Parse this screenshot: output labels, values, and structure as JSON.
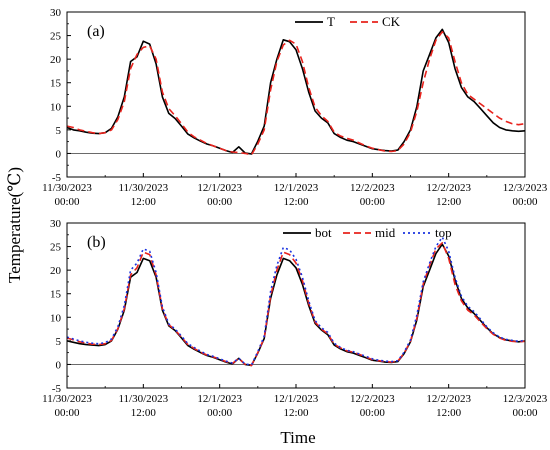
{
  "figure": {
    "ylabel": "Temperature(℃)",
    "xlabel": "Time"
  },
  "chart_data": [
    {
      "type": "line",
      "panel_label": "(a)",
      "ylim": [
        -5,
        30
      ],
      "yticks": [
        -5,
        0,
        5,
        10,
        15,
        20,
        25,
        30
      ],
      "xlim": [
        0,
        72
      ],
      "xticks": [
        0,
        12,
        24,
        36,
        48,
        60,
        72
      ],
      "xtick_labels": [
        [
          "11/30/2023",
          "00:00"
        ],
        [
          "11/30/2023",
          "12:00"
        ],
        [
          "12/1/2023",
          "00:00"
        ],
        [
          "12/1/2023",
          "12:00"
        ],
        [
          "12/2/2023",
          "00:00"
        ],
        [
          "12/2/2023",
          "12:00"
        ],
        [
          "12/3/2023",
          "00:00"
        ]
      ],
      "grid": false,
      "zero_line": true,
      "legend": "top-right",
      "x": [
        0,
        1,
        2,
        3,
        4,
        5,
        6,
        7,
        8,
        9,
        10,
        11,
        12,
        13,
        14,
        15,
        16,
        17,
        18,
        19,
        20,
        21,
        22,
        23,
        24,
        25,
        26,
        27,
        28,
        29,
        30,
        31,
        32,
        33,
        34,
        35,
        36,
        37,
        38,
        39,
        40,
        41,
        42,
        43,
        44,
        45,
        46,
        47,
        48,
        49,
        50,
        51,
        52,
        53,
        54,
        55,
        56,
        57,
        58,
        59,
        60,
        61,
        62,
        63,
        64,
        65,
        66,
        67,
        68,
        69,
        70,
        71,
        72
      ],
      "series": [
        {
          "name": "T",
          "color": "#000000",
          "dash": "solid",
          "values": [
            5.5,
            5.0,
            4.8,
            4.5,
            4.3,
            4.2,
            4.4,
            5.3,
            7.8,
            12.0,
            19.5,
            20.5,
            23.8,
            23.2,
            19.0,
            12.0,
            8.5,
            7.4,
            5.8,
            4.1,
            3.3,
            2.6,
            2.0,
            1.6,
            1.1,
            0.6,
            0.2,
            1.4,
            0.1,
            -0.1,
            2.6,
            5.8,
            15.0,
            20.0,
            24.1,
            23.7,
            22.0,
            18.0,
            13.0,
            9.0,
            7.5,
            6.5,
            4.2,
            3.4,
            2.8,
            2.5,
            2.0,
            1.5,
            1.0,
            0.8,
            0.6,
            0.5,
            0.7,
            2.5,
            5.0,
            10.0,
            17.5,
            21.0,
            24.5,
            26.3,
            23.5,
            18.0,
            14.0,
            12.0,
            11.0,
            9.5,
            8.0,
            6.5,
            5.5,
            5.0,
            4.8,
            4.7,
            4.8
          ]
        },
        {
          "name": "CK",
          "color": "#e8231d",
          "dash": "dashed",
          "values": [
            5.8,
            5.5,
            5.0,
            4.7,
            4.4,
            4.2,
            4.4,
            5.0,
            7.2,
            11.0,
            18.0,
            21.0,
            22.5,
            22.8,
            20.0,
            13.0,
            9.5,
            8.0,
            6.3,
            4.5,
            3.5,
            2.8,
            2.1,
            1.6,
            1.1,
            0.6,
            0.3,
            0.2,
            0.0,
            -0.3,
            2.0,
            5.0,
            13.5,
            19.5,
            23.0,
            24.0,
            23.2,
            19.5,
            14.0,
            9.8,
            8.0,
            6.8,
            4.5,
            3.7,
            3.2,
            2.8,
            2.2,
            1.6,
            1.1,
            0.8,
            0.5,
            0.4,
            0.6,
            2.0,
            4.5,
            9.0,
            15.0,
            20.0,
            24.0,
            25.8,
            24.5,
            19.5,
            15.0,
            12.5,
            11.5,
            10.5,
            9.5,
            8.5,
            7.5,
            6.8,
            6.3,
            6.1,
            6.3
          ]
        }
      ]
    },
    {
      "type": "line",
      "panel_label": "(b)",
      "ylim": [
        -5,
        30
      ],
      "yticks": [
        -5,
        0,
        5,
        10,
        15,
        20,
        25,
        30
      ],
      "xlim": [
        0,
        72
      ],
      "xticks": [
        0,
        12,
        24,
        36,
        48,
        60,
        72
      ],
      "xtick_labels": [
        [
          "11/30/2023",
          "00:00"
        ],
        [
          "11/30/2023",
          "12:00"
        ],
        [
          "12/1/2023",
          "00:00"
        ],
        [
          "12/1/2023",
          "12:00"
        ],
        [
          "12/2/2023",
          "00:00"
        ],
        [
          "12/2/2023",
          "12:00"
        ],
        [
          "12/3/2023",
          "00:00"
        ]
      ],
      "grid": false,
      "zero_line": true,
      "legend": "top-right",
      "x": [
        0,
        1,
        2,
        3,
        4,
        5,
        6,
        7,
        8,
        9,
        10,
        11,
        12,
        13,
        14,
        15,
        16,
        17,
        18,
        19,
        20,
        21,
        22,
        23,
        24,
        25,
        26,
        27,
        28,
        29,
        30,
        31,
        32,
        33,
        34,
        35,
        36,
        37,
        38,
        39,
        40,
        41,
        42,
        43,
        44,
        45,
        46,
        47,
        48,
        49,
        50,
        51,
        52,
        53,
        54,
        55,
        56,
        57,
        58,
        59,
        60,
        61,
        62,
        63,
        64,
        65,
        66,
        67,
        68,
        69,
        70,
        71,
        72
      ],
      "series": [
        {
          "name": "bot",
          "color": "#000000",
          "dash": "solid",
          "values": [
            5.0,
            4.7,
            4.4,
            4.2,
            4.1,
            4.0,
            4.2,
            5.0,
            7.5,
            11.5,
            18.5,
            19.5,
            22.5,
            22.0,
            18.5,
            11.5,
            8.2,
            7.2,
            5.6,
            4.0,
            3.2,
            2.5,
            1.9,
            1.5,
            1.0,
            0.5,
            0.1,
            1.3,
            0.0,
            -0.2,
            2.4,
            5.5,
            14.0,
            19.0,
            22.5,
            22.0,
            20.5,
            17.0,
            12.5,
            8.7,
            7.3,
            6.3,
            4.1,
            3.3,
            2.7,
            2.4,
            1.9,
            1.4,
            0.9,
            0.7,
            0.5,
            0.4,
            0.6,
            2.3,
            4.8,
            9.5,
            16.5,
            20.0,
            23.5,
            25.5,
            23.0,
            18.0,
            14.0,
            12.0,
            10.8,
            9.3,
            7.8,
            6.5,
            5.7,
            5.2,
            5.0,
            4.8,
            5.0
          ]
        },
        {
          "name": "mid",
          "color": "#e8231d",
          "dash": "dashed",
          "values": [
            5.6,
            5.2,
            4.8,
            4.5,
            4.3,
            4.2,
            4.4,
            5.1,
            7.6,
            11.8,
            19.0,
            20.5,
            23.8,
            23.3,
            19.0,
            11.8,
            8.4,
            7.3,
            5.8,
            4.2,
            3.4,
            2.6,
            2.0,
            1.6,
            1.1,
            0.6,
            0.2,
            1.3,
            0.0,
            -0.2,
            2.5,
            5.6,
            14.5,
            20.0,
            23.8,
            23.3,
            21.5,
            17.8,
            13.0,
            9.0,
            7.5,
            6.5,
            4.3,
            3.5,
            2.9,
            2.6,
            2.1,
            1.6,
            1.0,
            0.8,
            0.6,
            0.5,
            0.7,
            2.4,
            4.9,
            9.8,
            17.0,
            21.0,
            24.5,
            25.8,
            22.5,
            17.0,
            13.5,
            11.5,
            10.5,
            9.0,
            7.6,
            6.4,
            5.6,
            5.1,
            4.9,
            4.8,
            4.9
          ]
        },
        {
          "name": "top",
          "color": "#1a33e0",
          "dash": "dotted",
          "values": [
            5.8,
            5.4,
            5.0,
            4.7,
            4.5,
            4.4,
            4.6,
            5.4,
            8.0,
            12.5,
            20.0,
            21.5,
            24.5,
            24.0,
            19.5,
            12.2,
            8.6,
            7.5,
            6.0,
            4.4,
            3.6,
            2.8,
            2.1,
            1.7,
            1.2,
            0.7,
            0.3,
            1.3,
            0.1,
            -0.1,
            2.7,
            6.0,
            15.5,
            21.0,
            24.8,
            24.3,
            22.3,
            18.5,
            13.5,
            9.3,
            7.8,
            6.8,
            4.5,
            3.6,
            3.0,
            2.7,
            2.2,
            1.7,
            1.2,
            0.9,
            0.7,
            0.6,
            0.8,
            2.6,
            5.2,
            10.5,
            17.5,
            21.5,
            25.0,
            27.0,
            24.0,
            18.5,
            14.5,
            12.3,
            11.2,
            9.6,
            8.0,
            6.7,
            5.8,
            5.3,
            5.1,
            4.9,
            5.1
          ]
        }
      ]
    }
  ]
}
